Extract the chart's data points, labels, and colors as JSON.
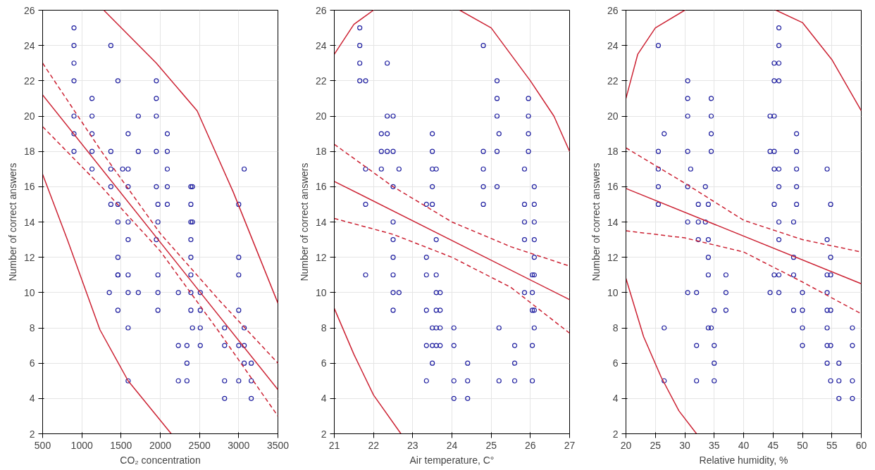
{
  "chart_data": [
    {
      "type": "scatter",
      "xlabel": "CO₂ concentration",
      "ylabel": "Number of correct answers",
      "xlim": [
        500,
        3500
      ],
      "ylim": [
        2,
        26
      ],
      "xticks": [
        500,
        1000,
        1500,
        2000,
        2500,
        3000,
        3500
      ],
      "yticks": [
        2,
        4,
        6,
        8,
        10,
        12,
        14,
        16,
        18,
        20,
        22,
        24,
        26
      ],
      "grid": true,
      "series": [
        {
          "marker": "circle",
          "color": "#1f1fa0",
          "x": [
            900,
            900,
            900,
            900,
            900,
            900,
            900,
            1130,
            1130,
            1130,
            1130,
            1130,
            1370,
            1370,
            1370,
            1370,
            1370,
            1460,
            1520,
            1460,
            1460,
            1460,
            1460,
            1460,
            1350,
            1460,
            1590,
            1590,
            1590,
            1590,
            1590,
            1590,
            1590,
            1590,
            1590,
            1720,
            1720,
            1720,
            1950,
            1950,
            1950,
            1950,
            1950,
            1950,
            1970,
            1970,
            1970,
            1970,
            1970,
            2090,
            2090,
            2090,
            2090,
            2090,
            2230,
            2230,
            2230,
            2340,
            2340,
            2340,
            2390,
            2390,
            2390,
            2390,
            2390,
            2390,
            2390,
            2390,
            2410,
            2410,
            2410,
            2510,
            2510,
            2510,
            2510,
            2820,
            2820,
            2820,
            2820,
            3000,
            3000,
            3000,
            3000,
            3000,
            3000,
            3070,
            3070,
            3070,
            3070,
            3160,
            3160,
            3160
          ],
          "values": [
            25,
            24,
            23,
            22,
            20,
            19,
            18,
            21,
            20,
            19,
            18,
            17,
            24,
            18,
            17,
            16,
            15,
            22,
            17,
            15,
            14,
            12,
            11,
            11,
            10,
            9,
            19,
            17,
            16,
            14,
            13,
            11,
            10,
            8,
            5,
            20,
            18,
            10,
            22,
            21,
            20,
            18,
            16,
            13,
            15,
            14,
            11,
            10,
            9,
            19,
            18,
            17,
            16,
            15,
            10,
            7,
            5,
            7,
            6,
            5,
            16,
            15,
            14,
            13,
            12,
            11,
            10,
            9,
            16,
            14,
            8,
            10,
            9,
            8,
            7,
            8,
            7,
            5,
            4,
            15,
            12,
            11,
            9,
            7,
            5,
            17,
            8,
            7,
            6,
            6,
            5,
            4
          ]
        },
        {
          "type": "line",
          "line_style": "solid",
          "color": "#cc2233",
          "x": [
            500,
            3500
          ],
          "values": [
            21.2,
            4.5
          ]
        },
        {
          "type": "line",
          "line_style": "dashed",
          "color": "#cc2233",
          "x": [
            500,
            1250,
            2000,
            2750,
            3500
          ],
          "values": [
            23.0,
            18.0,
            13.35,
            9.57,
            6.0
          ]
        },
        {
          "type": "line",
          "line_style": "dashed",
          "color": "#cc2233",
          "x": [
            500,
            1250,
            2000,
            2750,
            3500
          ],
          "values": [
            19.4,
            16.0,
            12.35,
            7.77,
            3.0
          ]
        },
        {
          "type": "line",
          "line_style": "solid",
          "color": "#cc2233",
          "x": [
            1280,
            1950,
            2470,
            2930,
            3500
          ],
          "values": [
            26,
            23,
            20.3,
            15.7,
            9.4
          ]
        },
        {
          "type": "line",
          "line_style": "solid",
          "color": "#cc2233",
          "x": [
            500,
            815,
            1230,
            1590,
            2140
          ],
          "values": [
            16.7,
            13,
            7.9,
            5,
            2
          ]
        }
      ]
    },
    {
      "type": "scatter",
      "xlabel": "Air temperature, C°",
      "ylabel": "Number of correct answers",
      "xlim": [
        21,
        27
      ],
      "ylim": [
        2,
        26
      ],
      "xticks": [
        21,
        22,
        23,
        24,
        25,
        26,
        27
      ],
      "yticks": [
        2,
        4,
        6,
        8,
        10,
        12,
        14,
        16,
        18,
        20,
        22,
        24,
        26
      ],
      "grid": true,
      "series": [
        {
          "marker": "circle",
          "color": "#1f1fa0",
          "x": [
            21.65,
            21.65,
            21.65,
            21.65,
            21.8,
            21.8,
            21.8,
            21.8,
            22.2,
            22.2,
            22.2,
            22.35,
            22.35,
            22.35,
            22.35,
            22.5,
            22.5,
            22.5,
            22.5,
            22.5,
            22.5,
            22.5,
            22.5,
            22.5,
            22.65,
            22.65,
            23.35,
            23.35,
            23.35,
            23.35,
            23.35,
            23.35,
            23.5,
            23.5,
            23.5,
            23.5,
            23.5,
            23.5,
            23.5,
            23.5,
            23.6,
            23.6,
            23.6,
            23.6,
            23.6,
            23.6,
            23.6,
            23.7,
            23.7,
            23.7,
            23.7,
            24.05,
            24.05,
            24.05,
            24.05,
            24.4,
            24.4,
            24.4,
            24.8,
            24.8,
            24.8,
            24.8,
            24.8,
            25.15,
            25.15,
            25.15,
            25.15,
            25.15,
            25.2,
            25.2,
            25.2,
            25.6,
            25.6,
            25.6,
            25.85,
            25.85,
            25.85,
            25.85,
            25.85,
            25.95,
            25.95,
            25.95,
            25.95,
            26.05,
            26.05,
            26.05,
            26.05,
            26.05,
            26.1,
            26.1,
            26.1,
            26.1,
            26.1,
            26.1,
            26.1,
            26.1
          ],
          "values": [
            25,
            24,
            23,
            22,
            22,
            17,
            15,
            11,
            19,
            18,
            17,
            23,
            20,
            19,
            18,
            20,
            18,
            16,
            14,
            13,
            12,
            11,
            10,
            9,
            17,
            10,
            15,
            12,
            11,
            9,
            7,
            5,
            19,
            18,
            17,
            16,
            15,
            8,
            7,
            6,
            17,
            13,
            11,
            10,
            9,
            8,
            7,
            10,
            9,
            8,
            7,
            8,
            7,
            5,
            4,
            6,
            5,
            4,
            24,
            18,
            17,
            16,
            15,
            22,
            21,
            20,
            18,
            16,
            19,
            8,
            5,
            7,
            6,
            5,
            17,
            15,
            14,
            13,
            10,
            21,
            20,
            19,
            18,
            11,
            10,
            9,
            7,
            5,
            16,
            15,
            14,
            13,
            12,
            11,
            9,
            8
          ]
        },
        {
          "type": "line",
          "line_style": "solid",
          "color": "#cc2233",
          "x": [
            21,
            27
          ],
          "values": [
            16.3,
            9.6
          ]
        },
        {
          "type": "line",
          "line_style": "dashed",
          "color": "#cc2233",
          "x": [
            21,
            22.5,
            24,
            25.5,
            27
          ],
          "values": [
            18.4,
            16.0,
            14.0,
            12.6,
            11.5
          ]
        },
        {
          "type": "line",
          "line_style": "dashed",
          "color": "#cc2233",
          "x": [
            21,
            22.5,
            24,
            25.5,
            27
          ],
          "values": [
            14.2,
            13.3,
            12.0,
            10.3,
            7.7
          ]
        },
        {
          "type": "line",
          "line_style": "solid",
          "color": "#cc2233",
          "x": [
            21,
            21.5,
            22
          ],
          "values": [
            23.5,
            25.2,
            26
          ]
        },
        {
          "type": "line",
          "line_style": "solid",
          "color": "#cc2233",
          "x": [
            24.2,
            25,
            26,
            26.6,
            27
          ],
          "values": [
            26,
            25,
            22,
            20,
            18
          ]
        },
        {
          "type": "line",
          "line_style": "solid",
          "color": "#cc2233",
          "x": [
            21,
            21.5,
            22,
            22.7
          ],
          "values": [
            9.1,
            6.5,
            4.2,
            2
          ]
        }
      ]
    },
    {
      "type": "scatter",
      "xlabel": "Relative humidity, %",
      "ylabel": "Number of correct answers",
      "xlim": [
        20,
        60
      ],
      "ylim": [
        2,
        26
      ],
      "xticks": [
        20,
        25,
        30,
        35,
        40,
        45,
        50,
        55,
        60
      ],
      "yticks": [
        2,
        4,
        6,
        8,
        10,
        12,
        14,
        16,
        18,
        20,
        22,
        24,
        26
      ],
      "grid": true,
      "series": [
        {
          "marker": "circle",
          "color": "#1f1fa0",
          "x": [
            25.5,
            25.5,
            25.5,
            25.5,
            25.5,
            26.5,
            26.5,
            26.5,
            30.5,
            30.5,
            30.5,
            30.5,
            30.5,
            30.5,
            30.5,
            31,
            32,
            32,
            32,
            32.3,
            32.3,
            32.3,
            33.5,
            33.5,
            34,
            34,
            34,
            34,
            34,
            34.5,
            34.5,
            34.5,
            34.5,
            34.5,
            35,
            35,
            35,
            35,
            37,
            37,
            37,
            44.5,
            44.5,
            44.5,
            45.2,
            45.2,
            45.2,
            45.2,
            45.2,
            45.2,
            45.2,
            46,
            46,
            46,
            46,
            46,
            46,
            46,
            46,
            46,
            46,
            48.5,
            48.5,
            48.5,
            48.5,
            49,
            49,
            49,
            49,
            49,
            50,
            50,
            50,
            50,
            54.2,
            54.2,
            54.2,
            54.2,
            54.2,
            54.2,
            54.2,
            54.2,
            54.8,
            54.8,
            54.8,
            54.8,
            54.8,
            54.8,
            56.2,
            56.2,
            56.2,
            58.5,
            58.5,
            58.5,
            58.5
          ],
          "values": [
            24,
            18,
            17,
            16,
            15,
            19,
            8,
            5,
            22,
            21,
            20,
            18,
            16,
            14,
            10,
            17,
            10,
            7,
            5,
            15,
            14,
            13,
            16,
            14,
            15,
            13,
            12,
            11,
            8,
            21,
            20,
            19,
            18,
            8,
            9,
            7,
            6,
            5,
            11,
            10,
            9,
            20,
            18,
            10,
            23,
            22,
            20,
            18,
            17,
            15,
            11,
            25,
            24,
            23,
            22,
            17,
            16,
            14,
            13,
            11,
            10,
            14,
            12,
            11,
            9,
            19,
            18,
            17,
            16,
            15,
            10,
            9,
            8,
            7,
            17,
            13,
            11,
            10,
            9,
            8,
            7,
            6,
            15,
            12,
            11,
            9,
            7,
            5,
            6,
            5,
            4,
            8,
            7,
            5,
            4
          ]
        },
        {
          "type": "line",
          "line_style": "solid",
          "color": "#cc2233",
          "x": [
            20,
            60
          ],
          "values": [
            15.9,
            10.5
          ]
        },
        {
          "type": "line",
          "line_style": "dashed",
          "color": "#cc2233",
          "x": [
            20,
            30,
            40,
            50,
            60
          ],
          "values": [
            18.2,
            16.2,
            14.1,
            13.0,
            12.3
          ]
        },
        {
          "type": "line",
          "line_style": "dashed",
          "color": "#cc2233",
          "x": [
            20,
            30,
            40,
            50,
            60
          ],
          "values": [
            13.5,
            13.1,
            12.3,
            10.6,
            8.8
          ]
        },
        {
          "type": "line",
          "line_style": "solid",
          "color": "#cc2233",
          "x": [
            20,
            22,
            25,
            30
          ],
          "values": [
            21,
            23.5,
            25,
            26
          ]
        },
        {
          "type": "line",
          "line_style": "solid",
          "color": "#cc2233",
          "x": [
            45.5,
            50,
            55,
            60
          ],
          "values": [
            26,
            25.3,
            23.2,
            20.3
          ]
        },
        {
          "type": "line",
          "line_style": "solid",
          "color": "#cc2233",
          "x": [
            20,
            23,
            26,
            29,
            32
          ],
          "values": [
            10.8,
            7.5,
            5.2,
            3.3,
            2
          ]
        }
      ]
    }
  ]
}
